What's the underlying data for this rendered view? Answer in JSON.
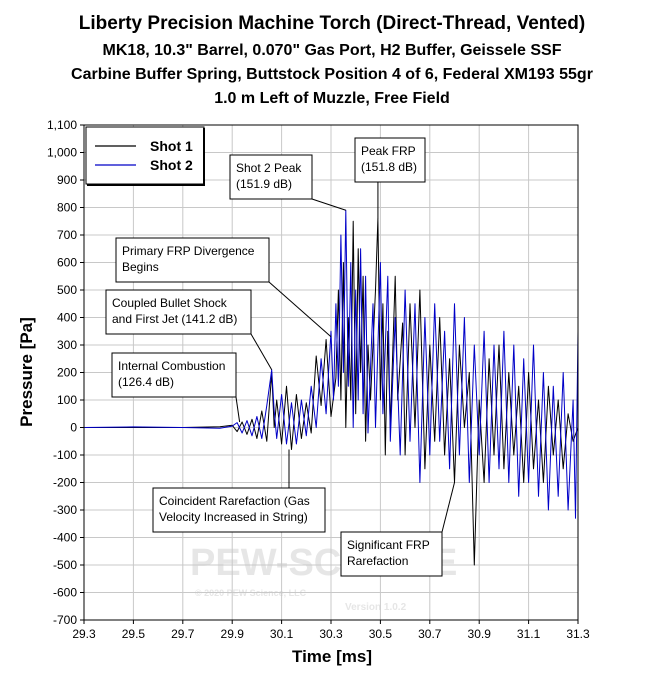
{
  "chart_data": {
    "type": "line",
    "title": "Liberty Precision Machine Torch (Direct-Thread, Vented)",
    "subtitle": [
      "MK18, 10.3\" Barrel, 0.070\" Gas Port, H2 Buffer, Geissele SSF",
      "Carbine Buffer Spring, Buttstock Position 4 of 6, Federal XM193 55gr",
      "1.0 m Left of Muzzle, Free Field"
    ],
    "xlabel": "Time [ms]",
    "ylabel": "Pressure [Pa]",
    "xlim": [
      29.3,
      31.3
    ],
    "ylim": [
      -700,
      1100
    ],
    "x_ticks": [
      "29.3",
      "29.5",
      "29.7",
      "29.9",
      "30.1",
      "30.3",
      "30.5",
      "30.7",
      "30.9",
      "31.1",
      "31.3"
    ],
    "y_ticks": [
      "1,100",
      "1,000",
      "900",
      "800",
      "700",
      "600",
      "500",
      "400",
      "300",
      "200",
      "100",
      "0",
      "-100",
      "-200",
      "-300",
      "-400",
      "-500",
      "-600",
      "-700"
    ],
    "grid": true,
    "legend_position": "top-left",
    "series": [
      {
        "name": "Shot 1",
        "color": "#000000",
        "points": [
          [
            29.3,
            0
          ],
          [
            29.5,
            0
          ],
          [
            29.7,
            0
          ],
          [
            29.85,
            3
          ],
          [
            29.9,
            8
          ],
          [
            29.92,
            -15
          ],
          [
            29.94,
            20
          ],
          [
            29.96,
            -25
          ],
          [
            29.98,
            30
          ],
          [
            30.0,
            -40
          ],
          [
            30.02,
            60
          ],
          [
            30.04,
            -50
          ],
          [
            30.06,
            200
          ],
          [
            30.07,
            0
          ],
          [
            30.08,
            100
          ],
          [
            30.1,
            -60
          ],
          [
            30.12,
            150
          ],
          [
            30.14,
            -80
          ],
          [
            30.16,
            120
          ],
          [
            30.18,
            -40
          ],
          [
            30.2,
            90
          ],
          [
            30.22,
            -20
          ],
          [
            30.24,
            260
          ],
          [
            30.26,
            80
          ],
          [
            30.28,
            320
          ],
          [
            30.3,
            40
          ],
          [
            30.32,
            180
          ],
          [
            30.33,
            500
          ],
          [
            30.34,
            100
          ],
          [
            30.35,
            600
          ],
          [
            30.36,
            0
          ],
          [
            30.37,
            400
          ],
          [
            30.38,
            100
          ],
          [
            30.39,
            750
          ],
          [
            30.4,
            50
          ],
          [
            30.41,
            650
          ],
          [
            30.42,
            200
          ],
          [
            30.43,
            550
          ],
          [
            30.44,
            -50
          ],
          [
            30.45,
            300
          ],
          [
            30.46,
            100
          ],
          [
            30.48,
            500
          ],
          [
            30.49,
            760
          ],
          [
            30.5,
            100
          ],
          [
            30.51,
            450
          ],
          [
            30.52,
            -100
          ],
          [
            30.53,
            350
          ],
          [
            30.54,
            0
          ],
          [
            30.56,
            550
          ],
          [
            30.57,
            100
          ],
          [
            30.59,
            380
          ],
          [
            30.6,
            -100
          ],
          [
            30.62,
            450
          ],
          [
            30.64,
            0
          ],
          [
            30.66,
            500
          ],
          [
            30.68,
            -150
          ],
          [
            30.7,
            300
          ],
          [
            30.72,
            -50
          ],
          [
            30.74,
            400
          ],
          [
            30.76,
            -100
          ],
          [
            30.78,
            250
          ],
          [
            30.8,
            -200
          ],
          [
            30.82,
            300
          ],
          [
            30.84,
            0
          ],
          [
            30.86,
            200
          ],
          [
            30.88,
            -500
          ],
          [
            30.9,
            100
          ],
          [
            30.92,
            -200
          ],
          [
            30.94,
            250
          ],
          [
            30.96,
            -100
          ],
          [
            30.98,
            300
          ],
          [
            31.0,
            -150
          ],
          [
            31.02,
            200
          ],
          [
            31.04,
            -100
          ],
          [
            31.06,
            150
          ],
          [
            31.08,
            -200
          ],
          [
            31.1,
            200
          ],
          [
            31.12,
            -150
          ],
          [
            31.14,
            100
          ],
          [
            31.16,
            -200
          ],
          [
            31.18,
            150
          ],
          [
            31.2,
            -100
          ],
          [
            31.22,
            100
          ],
          [
            31.24,
            -150
          ],
          [
            31.26,
            50
          ],
          [
            31.28,
            -50
          ],
          [
            31.3,
            0
          ]
        ]
      },
      {
        "name": "Shot 2",
        "color": "#0000c8",
        "points": [
          [
            29.3,
            0
          ],
          [
            29.5,
            2
          ],
          [
            29.7,
            0
          ],
          [
            29.85,
            -3
          ],
          [
            29.9,
            5
          ],
          [
            29.92,
            18
          ],
          [
            29.94,
            -20
          ],
          [
            29.96,
            25
          ],
          [
            29.98,
            -30
          ],
          [
            30.0,
            40
          ],
          [
            30.02,
            -40
          ],
          [
            30.04,
            80
          ],
          [
            30.06,
            210
          ],
          [
            30.07,
            60
          ],
          [
            30.08,
            -40
          ],
          [
            30.1,
            120
          ],
          [
            30.12,
            -60
          ],
          [
            30.14,
            90
          ],
          [
            30.16,
            -60
          ],
          [
            30.18,
            100
          ],
          [
            30.2,
            -30
          ],
          [
            30.22,
            150
          ],
          [
            30.24,
            0
          ],
          [
            30.26,
            250
          ],
          [
            30.28,
            50
          ],
          [
            30.3,
            350
          ],
          [
            30.31,
            100
          ],
          [
            30.32,
            450
          ],
          [
            30.33,
            150
          ],
          [
            30.34,
            700
          ],
          [
            30.35,
            200
          ],
          [
            30.36,
            790
          ],
          [
            30.37,
            150
          ],
          [
            30.38,
            600
          ],
          [
            30.39,
            0
          ],
          [
            30.4,
            500
          ],
          [
            30.41,
            100
          ],
          [
            30.42,
            650
          ],
          [
            30.43,
            50
          ],
          [
            30.44,
            550
          ],
          [
            30.45,
            -20
          ],
          [
            30.47,
            450
          ],
          [
            30.48,
            0
          ],
          [
            30.5,
            600
          ],
          [
            30.51,
            50
          ],
          [
            30.53,
            550
          ],
          [
            30.54,
            -50
          ],
          [
            30.56,
            400
          ],
          [
            30.58,
            -100
          ],
          [
            30.6,
            500
          ],
          [
            30.62,
            -50
          ],
          [
            30.64,
            450
          ],
          [
            30.66,
            -200
          ],
          [
            30.68,
            400
          ],
          [
            30.7,
            -100
          ],
          [
            30.72,
            450
          ],
          [
            30.74,
            -50
          ],
          [
            30.76,
            350
          ],
          [
            30.78,
            -150
          ],
          [
            30.8,
            450
          ],
          [
            30.82,
            -100
          ],
          [
            30.84,
            400
          ],
          [
            30.86,
            -200
          ],
          [
            30.88,
            300
          ],
          [
            30.9,
            -100
          ],
          [
            30.92,
            350
          ],
          [
            30.94,
            -200
          ],
          [
            30.96,
            300
          ],
          [
            30.98,
            -150
          ],
          [
            31.0,
            350
          ],
          [
            31.02,
            -200
          ],
          [
            31.04,
            300
          ],
          [
            31.06,
            -250
          ],
          [
            31.08,
            250
          ],
          [
            31.1,
            -200
          ],
          [
            31.12,
            300
          ],
          [
            31.14,
            -250
          ],
          [
            31.16,
            200
          ],
          [
            31.18,
            -300
          ],
          [
            31.2,
            150
          ],
          [
            31.22,
            -250
          ],
          [
            31.24,
            200
          ],
          [
            31.26,
            -300
          ],
          [
            31.28,
            100
          ],
          [
            31.29,
            -330
          ],
          [
            31.3,
            350
          ]
        ]
      }
    ],
    "annotations": [
      {
        "text": [
          "Shot 2 Peak",
          "(151.9 dB)"
        ],
        "target": [
          30.36,
          790
        ]
      },
      {
        "text": [
          "Peak FRP",
          "(151.8 dB)"
        ],
        "target": [
          30.49,
          760
        ]
      },
      {
        "text": [
          "Primary FRP Divergence",
          "Begins"
        ],
        "target": [
          30.3,
          330
        ]
      },
      {
        "text": [
          "Coupled Bullet Shock",
          "and First Jet (141.2 dB)"
        ],
        "target": [
          30.06,
          210
        ]
      },
      {
        "text": [
          "Internal Combustion",
          "(126.4 dB)"
        ],
        "target": [
          29.93,
          20
        ]
      },
      {
        "text": [
          "Coincident Rarefaction (Gas",
          "Velocity Increased in String)"
        ],
        "target": [
          30.13,
          -80
        ]
      },
      {
        "text": [
          "Significant FRP",
          "Rarefaction"
        ],
        "target": [
          30.8,
          -200
        ]
      }
    ],
    "watermark": {
      "logo": "PEW-SCIENCE",
      "copyright": "© 2020 PEW Science, LLC",
      "version": "Version 1.0.2"
    }
  }
}
